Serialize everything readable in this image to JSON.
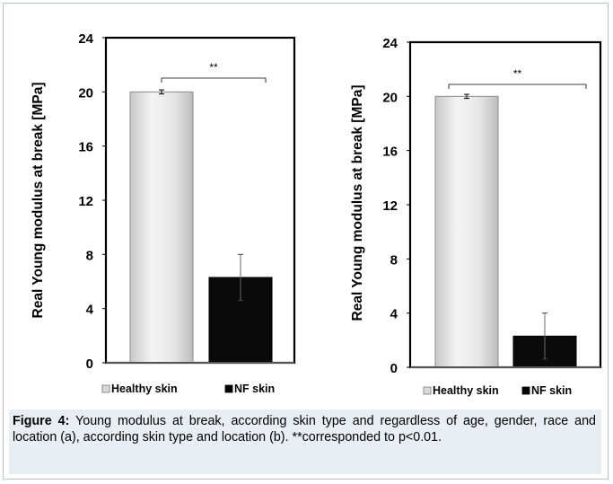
{
  "chart_data": [
    {
      "type": "bar",
      "categories": [
        "Healthy skin",
        "NF skin"
      ],
      "values": [
        20.0,
        6.3
      ],
      "errors": [
        0.15,
        1.7
      ],
      "ylabel": "Real Young modulus at break [MPa]",
      "ylim": [
        0,
        24
      ],
      "yticks": [
        "0",
        "4",
        "8",
        "12",
        "16",
        "20",
        "24"
      ],
      "yticks_values": [
        0,
        4,
        8,
        12,
        16,
        20,
        24
      ],
      "significance": "**",
      "legend": [
        "Healthy skin",
        "NF skin"
      ],
      "legend_position": "bottom",
      "grid": false
    },
    {
      "type": "bar",
      "categories": [
        "Healthy skin",
        "NF skin"
      ],
      "values": [
        20.0,
        2.3
      ],
      "errors": [
        0.15,
        1.7
      ],
      "ylabel": "Real Young modulus at break [MPa]",
      "ylim": [
        0,
        24
      ],
      "yticks": [
        "0",
        "4",
        "8",
        "12",
        "16",
        "20",
        "24"
      ],
      "yticks_values": [
        0,
        4,
        8,
        12,
        16,
        20,
        24
      ],
      "significance": "**",
      "legend": [
        "Healthy skin",
        "NF skin"
      ],
      "legend_position": "bottom",
      "grid": false
    }
  ],
  "colors": {
    "healthy": "#e6e6e6",
    "nf": "#0a0a0a",
    "caption_panel": "#e8eef3"
  },
  "caption": {
    "label": "Figure 4:",
    "text": " Young modulus at break, according skin type and regardless of age, gender, race and location (a), according skin type and location (b). **corresponded to p<0.01."
  }
}
